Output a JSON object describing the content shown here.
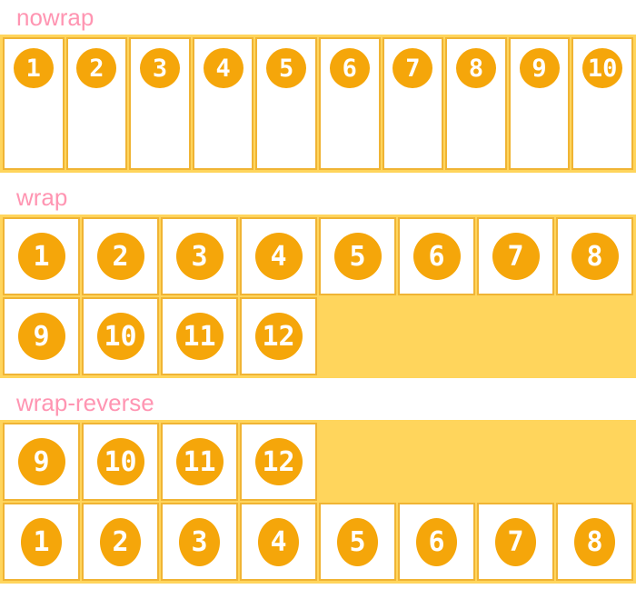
{
  "page_title": "flex-wrap demo",
  "colors": {
    "page_background": "#ffffff",
    "label_pink": "#ff95b2",
    "container_yellow": "#ffd55c",
    "item_border_gold": "#f0b434",
    "circle_orange": "#f5a60a",
    "number_white": "#ffffff",
    "item_background": "#ffffff"
  },
  "sections": [
    {
      "id": "nowrap",
      "label": "nowrap",
      "rows": [
        {
          "items": [
            "1",
            "2",
            "3",
            "4",
            "5",
            "6",
            "7",
            "8",
            "9",
            "10"
          ],
          "filler": false,
          "squash": false
        }
      ]
    },
    {
      "id": "wrap",
      "label": "wrap",
      "rows": [
        {
          "items": [
            "1",
            "2",
            "3",
            "4",
            "5",
            "6",
            "7",
            "8"
          ],
          "filler": false,
          "squash": false
        },
        {
          "items": [
            "9",
            "10",
            "11",
            "12"
          ],
          "filler": true,
          "squash": false
        }
      ]
    },
    {
      "id": "wrap-reverse",
      "label": "wrap-reverse",
      "rows": [
        {
          "items": [
            "9",
            "10",
            "11",
            "12"
          ],
          "filler": true,
          "squash": false
        },
        {
          "items": [
            "1",
            "2",
            "3",
            "4",
            "5",
            "6",
            "7",
            "8"
          ],
          "filler": false,
          "squash": true
        }
      ]
    }
  ]
}
